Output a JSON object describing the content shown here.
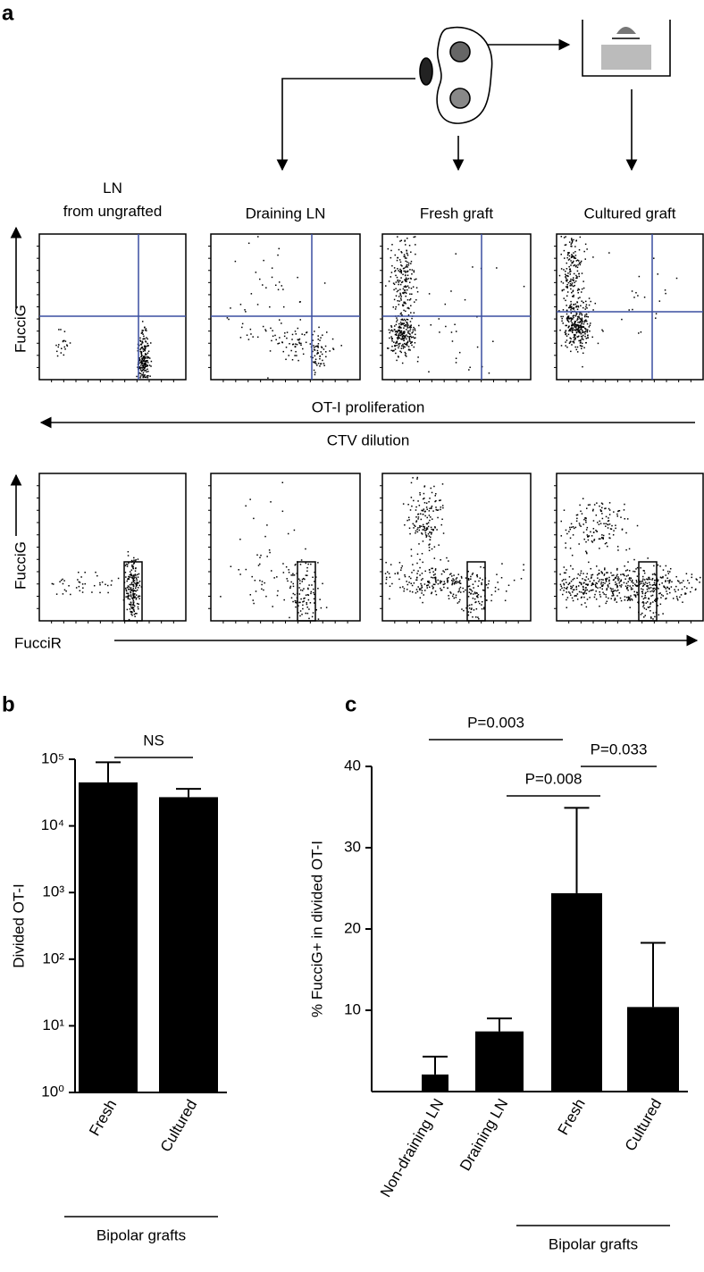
{
  "panel_a": {
    "panel_label": "a",
    "columns": [
      "LN from ungrafted",
      "Draining LN",
      "Fresh graft",
      "Cultured graft"
    ],
    "y_label_row1": "FucciG",
    "y_label_row2": "FucciG",
    "arrow_label_top": "OT-I proliferation",
    "arrow_label_bottom": "CTV dilution",
    "x_label": "FucciR"
  },
  "chart_data": [
    {
      "type": "bar",
      "panel_label": "b",
      "y_label": "Divided OT-I",
      "yscale": "log",
      "categories": [
        "Fresh",
        "Cultured"
      ],
      "values": [
        45000,
        27000
      ],
      "errors": [
        45000,
        9000
      ],
      "color": "#000000",
      "ylim": [
        1,
        100000
      ],
      "yticks": [
        {
          "value": 1,
          "label": "10⁰"
        },
        {
          "value": 10,
          "label": "10¹"
        },
        {
          "value": 100,
          "label": "10²"
        },
        {
          "value": 1000,
          "label": "10³"
        },
        {
          "value": 10000,
          "label": "10⁴"
        },
        {
          "value": 100000,
          "label": "10⁵"
        }
      ],
      "group_label": "Bipolar grafts",
      "annotations": [
        "NS"
      ]
    },
    {
      "type": "bar",
      "panel_label": "c",
      "y_label": "% FucciG+ in divided OT-I",
      "yscale": "linear",
      "categories": [
        "Non-draining LN",
        "Draining LN",
        "Fresh",
        "Cultured"
      ],
      "values": [
        2.1,
        7.4,
        24.4,
        10.4
      ],
      "errors": [
        2.2,
        1.6,
        10.5,
        7.9
      ],
      "color": "#000000",
      "ylim": [
        0,
        40
      ],
      "yticks": [
        10,
        20,
        30,
        40
      ],
      "group_label": "Bipolar grafts",
      "annotations": [
        "P=0.003",
        "P=0.008",
        "P=0.033"
      ]
    }
  ]
}
